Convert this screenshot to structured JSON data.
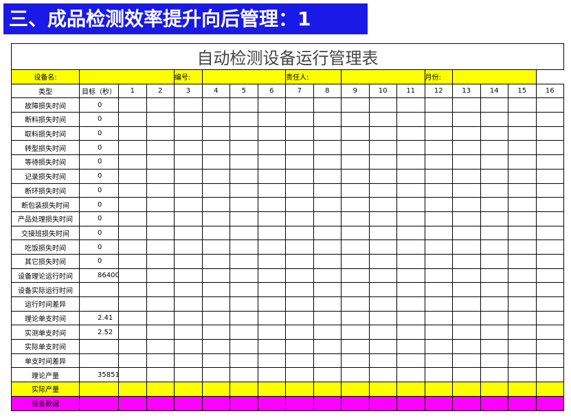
{
  "header": {
    "title": "三、成品检测效率提升向后管理：1"
  },
  "table": {
    "title": "自动检测设备运行管理表",
    "info": [
      "设备名:",
      "编号:",
      "责任人:",
      "月份:"
    ],
    "columns": [
      "类型",
      "目标（秒）",
      1,
      2,
      3,
      4,
      5,
      6,
      7,
      8,
      9,
      10,
      11,
      12,
      13,
      14,
      15,
      16
    ],
    "rows": [
      {
        "label": "故障损失时间",
        "target": 0
      },
      {
        "label": "断料损失时间",
        "target": 0
      },
      {
        "label": "取料损失时间",
        "target": 0
      },
      {
        "label": "转型损失时间",
        "target": 0
      },
      {
        "label": "等待损失时间",
        "target": 0
      },
      {
        "label": "记录损失时间",
        "target": 0
      },
      {
        "label": "断环损失时间",
        "target": 0
      },
      {
        "label": "断包装损失时间",
        "target": 0
      },
      {
        "label": "产品处理损失时间",
        "target": 0
      },
      {
        "label": "交接班损失时间",
        "target": 0
      },
      {
        "label": "吃饭损失时间",
        "target": 0
      },
      {
        "label": "其它损失时间",
        "target": 0
      },
      {
        "label": "设备理论运行时间",
        "target": 86400
      },
      {
        "label": "设备实际运行时间"
      },
      {
        "label": "运行时间差异"
      },
      {
        "label": "理论单支时间",
        "target": 2.41
      },
      {
        "label": "实测单支时间",
        "target": 2.52
      },
      {
        "label": "实际单支时间"
      },
      {
        "label": "单支时间差异"
      },
      {
        "label": "理论产量",
        "target": 35851
      },
      {
        "label": "实际产量"
      },
      {
        "label": "设备数据"
      }
    ]
  }
}
